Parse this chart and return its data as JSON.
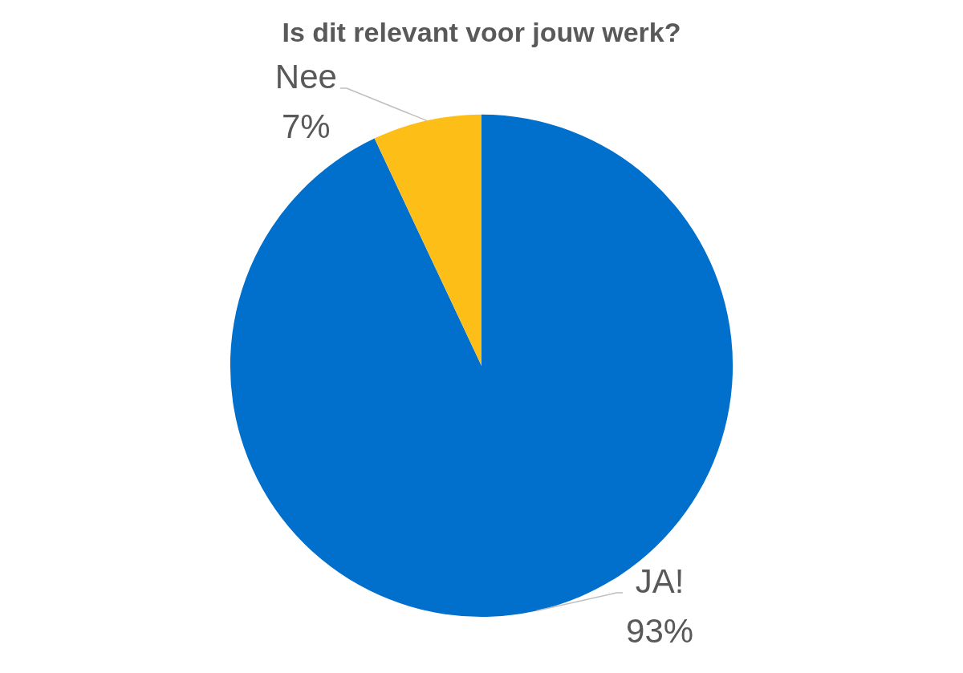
{
  "chart_data": {
    "type": "pie",
    "title": "Is dit relevant voor jouw werk?",
    "categories": [
      "JA!",
      "Nee"
    ],
    "values": [
      93,
      7
    ],
    "colors": [
      "#0070cc",
      "#fdbf17"
    ],
    "value_labels": [
      "93%",
      "7%"
    ]
  }
}
